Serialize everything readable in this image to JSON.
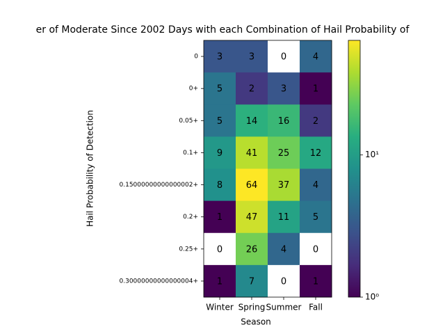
{
  "chart_data": {
    "type": "heatmap",
    "title": "er of Moderate Since 2002 Days with each Combination of Hail Probability of",
    "xlabel": "Season",
    "ylabel": "Hail Probability of Detection",
    "categories": [
      "Winter",
      "Spring",
      "Summer",
      "Fall"
    ],
    "y_categories": [
      "0",
      "0+",
      "0.05+",
      "0.1+",
      "0.15000000000000002+",
      "0.2+",
      "0.25+",
      "0.30000000000000004+"
    ],
    "values": [
      [
        3,
        3,
        0,
        4
      ],
      [
        5,
        2,
        3,
        1
      ],
      [
        5,
        14,
        16,
        2
      ],
      [
        9,
        41,
        25,
        12
      ],
      [
        8,
        64,
        37,
        4
      ],
      [
        1,
        47,
        11,
        5
      ],
      [
        0,
        26,
        4,
        0
      ],
      [
        1,
        7,
        0,
        1
      ]
    ],
    "colormap": "viridis",
    "color_scale": "log",
    "clim": [
      1,
      64
    ],
    "cticks": [
      {
        "value": 1,
        "label": "10⁰"
      },
      {
        "value": 10,
        "label": "10¹"
      }
    ]
  }
}
